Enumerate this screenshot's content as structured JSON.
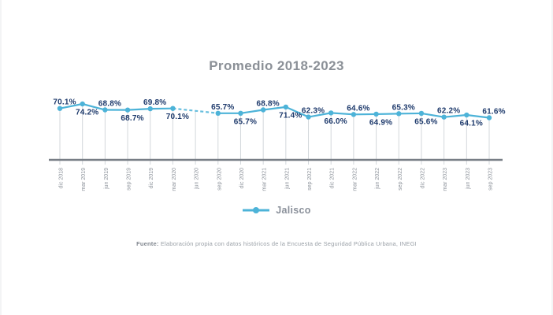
{
  "chart_data": {
    "type": "line",
    "title": "Promedio 2018-2023",
    "categories": [
      "dic 2018",
      "mar 2019",
      "jun 2019",
      "sep 2019",
      "dic 2019",
      "mar 2020",
      "jun 2020",
      "sep 2020",
      "dic 2020",
      "mar 2021",
      "jun 2021",
      "sep 2021",
      "dic 2021",
      "mar 2022",
      "jun 2022",
      "sep 2022",
      "dic 2022",
      "mar 2023",
      "jun 2023",
      "sep 2023"
    ],
    "series": [
      {
        "name": "Jalisco",
        "color": "#4db3d8",
        "values": [
          70.1,
          74.2,
          68.8,
          68.7,
          69.8,
          70.1,
          null,
          65.7,
          65.7,
          68.8,
          71.4,
          62.3,
          66.0,
          64.6,
          64.9,
          65.3,
          65.6,
          62.2,
          64.1,
          61.6
        ]
      }
    ],
    "value_suffix": "%",
    "value_decimals": 1,
    "missing_segment_style": "dashed",
    "grid": false,
    "y_axis_visible": false,
    "legend_position": "bottom",
    "label_alternation": "above-below",
    "label_color": "#1e3a6c",
    "axis_color": "#787e86",
    "stem_color": "#d3d7db",
    "tick_label_color": "#8d939b",
    "ylim": [
      58,
      78
    ]
  },
  "footer": {
    "prefix": "Fuente:",
    "text": " Elaboración propia con datos históricos de la Encuesta de Seguridad Pública Urbana, INEGI"
  }
}
